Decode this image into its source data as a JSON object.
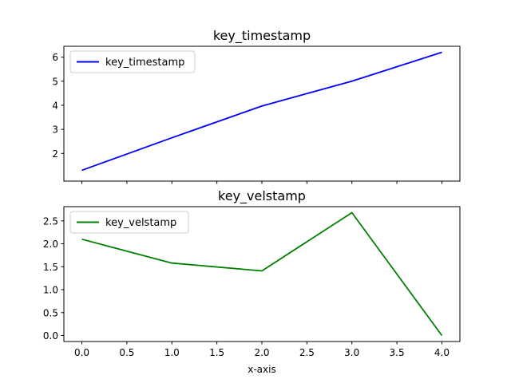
{
  "chart_data": [
    {
      "type": "line",
      "title": "key_timestamp",
      "xlabel": "",
      "ylabel": "",
      "x": [
        0,
        1,
        2,
        3,
        4
      ],
      "series": [
        {
          "name": "key_timestamp",
          "color": "#0000ff",
          "values": [
            1.3,
            2.65,
            3.97,
            5.0,
            6.2
          ]
        }
      ],
      "xlim": [
        -0.2,
        4.2
      ],
      "ylim": [
        0.85,
        6.45
      ],
      "xticks": [
        0,
        0.5,
        1.0,
        1.5,
        2.0,
        2.5,
        3.0,
        3.5,
        4.0
      ],
      "xtick_labels_shown": false,
      "yticks": [
        2,
        3,
        4,
        5,
        6
      ],
      "ytick_labels": [
        "2",
        "3",
        "4",
        "5",
        "6"
      ],
      "grid": false,
      "legend": "upper-left"
    },
    {
      "type": "line",
      "title": "key_velstamp",
      "xlabel": "x-axis",
      "ylabel": "",
      "x": [
        0,
        1,
        2,
        3,
        4
      ],
      "series": [
        {
          "name": "key_velstamp",
          "color": "#008000",
          "values": [
            2.1,
            1.58,
            1.41,
            2.68,
            0.0
          ]
        }
      ],
      "xlim": [
        -0.2,
        4.2
      ],
      "ylim": [
        -0.13,
        2.81
      ],
      "xticks": [
        0,
        0.5,
        1.0,
        1.5,
        2.0,
        2.5,
        3.0,
        3.5,
        4.0
      ],
      "xtick_labels": [
        "0.0",
        "0.5",
        "1.0",
        "1.5",
        "2.0",
        "2.5",
        "3.0",
        "3.5",
        "4.0"
      ],
      "xtick_labels_shown": true,
      "yticks": [
        0.0,
        0.5,
        1.0,
        1.5,
        2.0,
        2.5
      ],
      "ytick_labels": [
        "0.0",
        "0.5",
        "1.0",
        "1.5",
        "2.0",
        "2.5"
      ],
      "grid": false,
      "legend": "upper-left"
    }
  ]
}
